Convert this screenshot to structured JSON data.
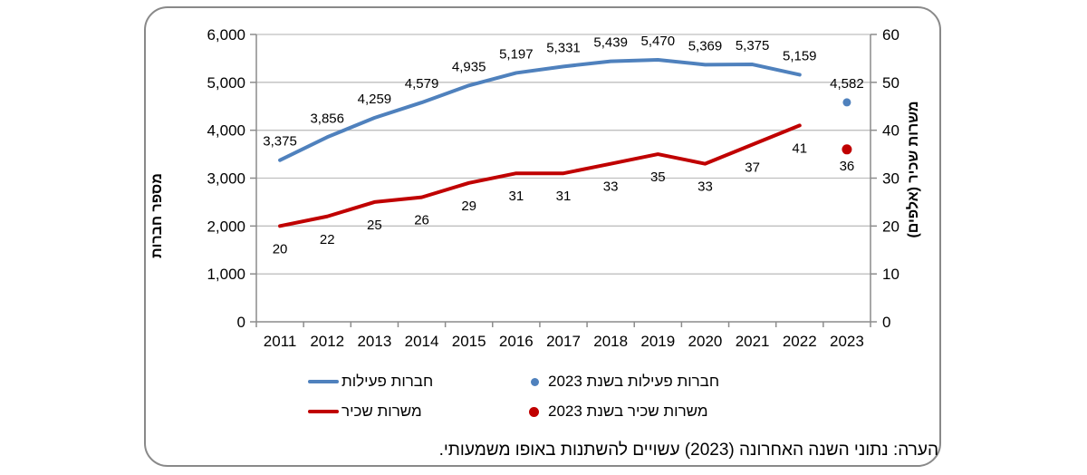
{
  "chart_data": {
    "type": "line",
    "categories": [
      "2011",
      "2012",
      "2013",
      "2014",
      "2015",
      "2016",
      "2017",
      "2018",
      "2019",
      "2020",
      "2021",
      "2022",
      "2023"
    ],
    "series": [
      {
        "name": "חברות פעילות",
        "axis": "left",
        "color": "#4F81BD",
        "values": [
          3375,
          3856,
          4259,
          4579,
          4935,
          5197,
          5331,
          5439,
          5470,
          5369,
          5375,
          5159
        ],
        "labels": [
          "3,375",
          "3,856",
          "4,259",
          "4,579",
          "4,935",
          "5,197",
          "5,331",
          "5,439",
          "5,470",
          "5,369",
          "5,375",
          "5,159"
        ]
      },
      {
        "name": "משרות שכיר",
        "axis": "right",
        "color": "#C00000",
        "values": [
          20,
          22,
          25,
          26,
          29,
          31,
          31,
          33,
          35,
          33,
          37,
          41
        ],
        "labels": [
          "20",
          "22",
          "25",
          "26",
          "29",
          "31",
          "31",
          "33",
          "35",
          "33",
          "37",
          "41"
        ]
      }
    ],
    "points_2023": [
      {
        "series": "חברות פעילות בשנת 2023",
        "axis": "left",
        "color": "#4F81BD",
        "category": "2023",
        "value": 4582,
        "label": "4,582",
        "radius": 4.5
      },
      {
        "series": "משרות שכיר בשנת 2023",
        "axis": "right",
        "color": "#C00000",
        "category": "2023",
        "value": 36,
        "label": "36",
        "radius": 5.5
      }
    ],
    "left_axis": {
      "title": "מספר חברות",
      "min": 0,
      "max": 6000,
      "tick_labels": [
        "0",
        "1,000",
        "2,000",
        "3,000",
        "4,000",
        "5,000",
        "6,000"
      ]
    },
    "right_axis": {
      "title": "משרות שכיר (אלפים)",
      "min": 0,
      "max": 60,
      "tick_labels": [
        "0",
        "10",
        "20",
        "30",
        "40",
        "50",
        "60"
      ]
    },
    "grid": true,
    "legend_position": "bottom",
    "colors": {
      "blue": "#4F81BD",
      "red": "#C00000",
      "gridline": "#BFBFBF",
      "axis": "#8C8C8C"
    }
  },
  "legend": {
    "items": [
      {
        "type": "line",
        "color": "#4F81BD",
        "label": "חברות פעילות"
      },
      {
        "type": "dot",
        "color": "#4F81BD",
        "label": "חברות פעילות בשנת 2023"
      },
      {
        "type": "line",
        "color": "#C00000",
        "label": "משרות שכיר"
      },
      {
        "type": "dot",
        "color": "#C00000",
        "label": "משרות שכיר בשנת 2023"
      }
    ]
  },
  "note": "הערה: נתוני השנה האחרונה (2023) עשויים להשתנות באופו משמעותי."
}
